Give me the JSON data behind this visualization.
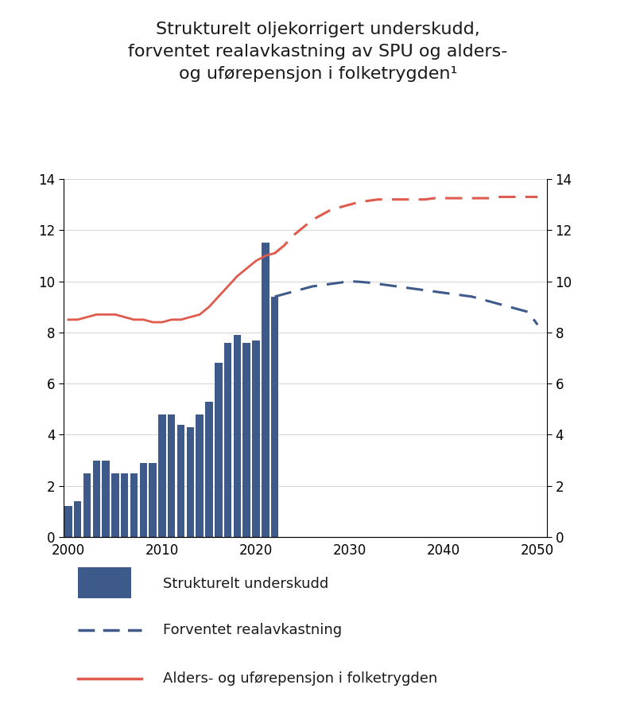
{
  "title": "Strukturelt oljekorrigert underskudd,\nforventet realavkastning av SPU og alders-\nog uførepensjon i folketrygden¹",
  "bar_years": [
    2000,
    2001,
    2002,
    2003,
    2004,
    2005,
    2006,
    2007,
    2008,
    2009,
    2010,
    2011,
    2012,
    2013,
    2014,
    2015,
    2016,
    2017,
    2018,
    2019,
    2020,
    2021,
    2022
  ],
  "bar_values": [
    1.2,
    1.4,
    2.5,
    3.0,
    3.0,
    2.5,
    2.5,
    2.5,
    2.9,
    2.9,
    4.8,
    4.8,
    4.4,
    4.3,
    4.8,
    5.3,
    6.8,
    7.6,
    7.9,
    7.6,
    7.7,
    11.5,
    9.4
  ],
  "bar_color": "#3d5a8a",
  "red_line_x": [
    2000,
    2001,
    2002,
    2003,
    2004,
    2005,
    2006,
    2007,
    2008,
    2009,
    2010,
    2011,
    2012,
    2013,
    2014,
    2015,
    2016,
    2017,
    2018,
    2019,
    2020,
    2021,
    2022
  ],
  "red_line_y": [
    8.5,
    8.5,
    8.6,
    8.7,
    8.7,
    8.7,
    8.6,
    8.5,
    8.5,
    8.4,
    8.4,
    8.5,
    8.5,
    8.6,
    8.7,
    9.0,
    9.4,
    9.8,
    10.2,
    10.5,
    10.8,
    11.0,
    11.1
  ],
  "blue_dashed_x": [
    2022,
    2023,
    2024,
    2025,
    2026,
    2027,
    2028,
    2029,
    2030,
    2031,
    2032,
    2033,
    2034,
    2035,
    2036,
    2037,
    2038,
    2039,
    2040,
    2041,
    2042,
    2043,
    2044,
    2045,
    2046,
    2047,
    2048,
    2049,
    2050
  ],
  "blue_dashed_y": [
    9.4,
    9.5,
    9.6,
    9.7,
    9.8,
    9.85,
    9.9,
    9.95,
    10.0,
    9.98,
    9.95,
    9.9,
    9.85,
    9.8,
    9.75,
    9.7,
    9.65,
    9.6,
    9.55,
    9.5,
    9.45,
    9.4,
    9.3,
    9.2,
    9.1,
    9.0,
    8.9,
    8.8,
    8.3
  ],
  "red_dashed_x": [
    2022,
    2023,
    2024,
    2025,
    2026,
    2027,
    2028,
    2029,
    2030,
    2031,
    2032,
    2033,
    2034,
    2035,
    2036,
    2037,
    2038,
    2039,
    2040,
    2041,
    2042,
    2043,
    2044,
    2045,
    2046,
    2047,
    2048,
    2049,
    2050
  ],
  "red_dashed_y": [
    11.1,
    11.4,
    11.8,
    12.1,
    12.4,
    12.6,
    12.8,
    12.9,
    13.0,
    13.1,
    13.15,
    13.2,
    13.2,
    13.2,
    13.2,
    13.2,
    13.2,
    13.25,
    13.25,
    13.25,
    13.25,
    13.25,
    13.25,
    13.25,
    13.3,
    13.3,
    13.3,
    13.3,
    13.3
  ],
  "red_line_color": "#e05a4e",
  "blue_dashed_color": "#3d5a8a",
  "red_dashed_color": "#e05a4e",
  "ylim": [
    0,
    14
  ],
  "xlim": [
    1999.5,
    2051
  ],
  "yticks": [
    0,
    2,
    4,
    6,
    8,
    10,
    12,
    14
  ],
  "xticks": [
    2000,
    2010,
    2020,
    2030,
    2040,
    2050
  ],
  "legend_bar_label": "Strukturelt underskudd",
  "legend_blue_label": "Forventet realavkastning",
  "legend_red_label": "Alders- og uførepensjon i folketrygden",
  "background_color": "#ffffff",
  "title_fontsize": 16,
  "axis_fontsize": 12
}
